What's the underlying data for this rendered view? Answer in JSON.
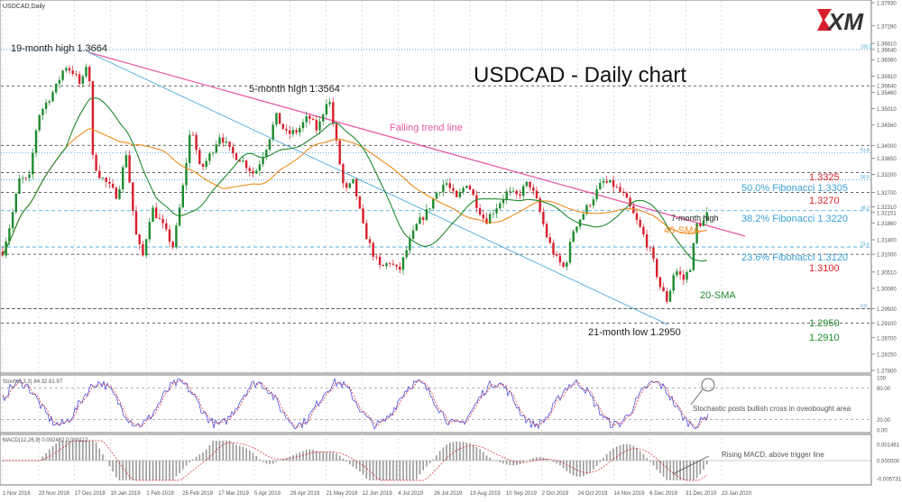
{
  "header": {
    "symbol_label": "USDCAD,Daily"
  },
  "logo": {
    "text": "XM"
  },
  "main_title": "USDCAD - Daily chart",
  "annotations": {
    "high19": "19-month high 1.3664",
    "high5": "5-month high 1.3564",
    "trendline": "Falling trend line",
    "low21": "21-month low 1.2950",
    "high7": "7-month high",
    "sma40": "40-SMA",
    "sma20": "20-SMA",
    "stoch_note": "Stochastic posts bullish cross in oveobought area",
    "macd_note": "Rising MACD, above trigger line"
  },
  "levels": [
    {
      "label": "1.3325",
      "color": "#e0242a"
    },
    {
      "label": "50.0% Fibonacci 1.3305",
      "color": "#3aa0d8"
    },
    {
      "label": "1.3270",
      "color": "#e0242a"
    },
    {
      "label": "38.2% Fibonacci 1.3220",
      "color": "#3aa0d8"
    },
    {
      "label": "23.6% Fibonacci 1.3120",
      "color": "#3aa0d8"
    },
    {
      "label": "1.3100",
      "color": "#e0242a"
    },
    {
      "label": "1.2950",
      "color": "#1e8a2e"
    },
    {
      "label": "1.2910",
      "color": "#1e8a2e"
    }
  ],
  "fib_small": [
    "100.0",
    "61.8",
    "50.0",
    "38.2",
    "23.6",
    "0.0"
  ],
  "price_axis": [
    "1.37930",
    "1.37290",
    "1.36810",
    "1.36640",
    "1.36360",
    "1.35910",
    "1.35640",
    "1.35460",
    "1.35010",
    "1.34560",
    "1.34000",
    "1.33650",
    "1.33200",
    "1.32700",
    "1.32310",
    "1.32151",
    "1.31860",
    "1.31400",
    "1.31000",
    "1.30510",
    "1.30060",
    "1.29500",
    "1.29100",
    "1.28700",
    "1.28250",
    "1.27800"
  ],
  "stoch": {
    "label": "Stoch(5,3,3) 84.32 81.97",
    "axis": [
      "100",
      "80.00",
      "20.00",
      "0.00"
    ]
  },
  "macd": {
    "label": "MACD(12,26,9) 0.002462 0.000112",
    "axis": [
      "0.001461",
      "0.000000",
      "-0.005731"
    ]
  },
  "date_axis": [
    "1 Nov 2018",
    "23 Nov 2018",
    "17 Dec 2018",
    "10 Jan 2019",
    "1 Feb 2019",
    "25 Feb 2019",
    "17 Mar 2019",
    "5 Apr 2019",
    "29 Apr 2019",
    "21 May 2019",
    "12 Jun 2019",
    "4 Jul 2019",
    "26 Jul 2019",
    "19 Aug 2019",
    "10 Sep 2019",
    "2 Oct 2019",
    "24 Oct 2019",
    "14 Nov 2019",
    "6 Dec 2019",
    "31 Dec 2019",
    "23 Jan 2020"
  ],
  "chart_data": {
    "type": "line",
    "title": "USDCAD - Daily chart",
    "x": [
      "1 Nov 2018",
      "23 Nov 2018",
      "17 Dec 2018",
      "10 Jan 2019",
      "1 Feb 2019",
      "25 Feb 2019",
      "17 Mar 2019",
      "5 Apr 2019",
      "29 Apr 2019",
      "21 May 2019",
      "12 Jun 2019",
      "4 Jul 2019",
      "26 Jul 2019",
      "19 Aug 2019",
      "10 Sep 2019",
      "2 Oct 2019",
      "24 Oct 2019",
      "14 Nov 2019",
      "6 Dec 2019",
      "31 Dec 2019",
      "23 Jan 2020"
    ],
    "series": [
      {
        "name": "",
        "values": [
          1.31,
          1.33,
          1.36,
          1.328,
          1.315,
          1.333,
          1.337,
          1.34,
          1.345,
          1.354,
          1.33,
          1.306,
          1.32,
          1.33,
          1.322,
          1.329,
          1.307,
          1.332,
          1.315,
          1.297,
          1.32
        ]
      },
      {
        "name": "20-SMA",
        "values": [
          1.305,
          1.32,
          1.35,
          1.335,
          1.32,
          1.325,
          1.333,
          1.338,
          1.342,
          1.348,
          1.338,
          1.315,
          1.315,
          1.325,
          1.325,
          1.325,
          1.315,
          1.323,
          1.32,
          1.305,
          1.309
        ]
      },
      {
        "name": "40-SMA",
        "values": [
          1.3,
          1.312,
          1.335,
          1.337,
          1.328,
          1.322,
          1.33,
          1.335,
          1.338,
          1.344,
          1.342,
          1.325,
          1.315,
          1.318,
          1.323,
          1.323,
          1.32,
          1.32,
          1.32,
          1.315,
          1.312
        ]
      }
    ],
    "ylim": [
      1.278,
      1.3793
    ],
    "xlabel": "",
    "ylabel": "",
    "grid": true
  }
}
